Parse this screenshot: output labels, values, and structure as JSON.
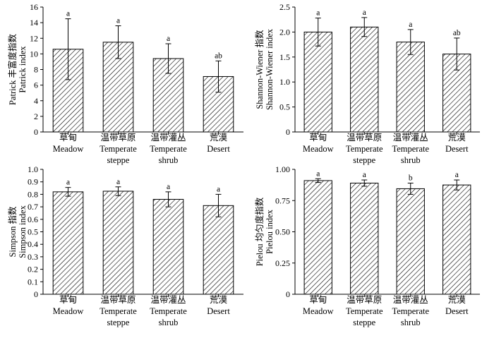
{
  "figure": {
    "panels": 4
  },
  "chart_data": [
    {
      "type": "bar",
      "ylabel": "Patrick 丰富度指数",
      "ylabel_en": "Patrick index",
      "ylim": [
        0,
        16
      ],
      "yticks": [
        "0",
        "2",
        "4",
        "6",
        "8",
        "10",
        "12",
        "14",
        "16"
      ],
      "grid": false,
      "categories": [
        {
          "zh": "草甸",
          "en1": "Meadow",
          "en2": ""
        },
        {
          "zh": "温带草原",
          "en1": "Temperate",
          "en2": "steppe"
        },
        {
          "zh": "温带灌丛",
          "en1": "Temperate",
          "en2": "shrub"
        },
        {
          "zh": "荒漠",
          "en1": "Desert",
          "en2": ""
        }
      ],
      "values": [
        10.6,
        11.5,
        9.4,
        7.1
      ],
      "errors": [
        3.9,
        2.1,
        1.9,
        2.0
      ],
      "significance": [
        "a",
        "a",
        "a",
        "ab"
      ]
    },
    {
      "type": "bar",
      "ylabel": "Shannon-Wiener 指数",
      "ylabel_en": "Shannon-Wiener index",
      "ylim": [
        0,
        2.5
      ],
      "yticks": [
        "0",
        "0.5",
        "1.0",
        "1.5",
        "2.0",
        "2.5"
      ],
      "grid": false,
      "categories": [
        {
          "zh": "草甸",
          "en1": "Meadow",
          "en2": ""
        },
        {
          "zh": "温带草原",
          "en1": "Temperate",
          "en2": "steppe"
        },
        {
          "zh": "温带灌丛",
          "en1": "Temperate",
          "en2": "shrub"
        },
        {
          "zh": "荒漠",
          "en1": "Desert",
          "en2": ""
        }
      ],
      "values": [
        2.0,
        2.1,
        1.8,
        1.56
      ],
      "errors": [
        0.28,
        0.19,
        0.25,
        0.32
      ],
      "significance": [
        "a",
        "a",
        "a",
        "ab"
      ]
    },
    {
      "type": "bar",
      "ylabel": "Simpson 指数",
      "ylabel_en": "Simpson index",
      "ylim": [
        0,
        1.0
      ],
      "yticks": [
        "0",
        "0.1",
        "0.2",
        "0.3",
        "0.4",
        "0.5",
        "0.6",
        "0.7",
        "0.8",
        "0.9",
        "1.0"
      ],
      "grid": false,
      "categories": [
        {
          "zh": "草甸",
          "en1": "Meadow",
          "en2": ""
        },
        {
          "zh": "温带草原",
          "en1": "Temperate",
          "en2": "steppe"
        },
        {
          "zh": "温带灌丛",
          "en1": "Temperate",
          "en2": "shrub"
        },
        {
          "zh": "荒漠",
          "en1": "Desert",
          "en2": ""
        }
      ],
      "values": [
        0.82,
        0.825,
        0.76,
        0.71
      ],
      "errors": [
        0.035,
        0.035,
        0.06,
        0.09
      ],
      "significance": [
        "a",
        "a",
        "a",
        "a"
      ]
    },
    {
      "type": "bar",
      "ylabel": "Pielou 均匀度指数",
      "ylabel_en": "Pielou index",
      "ylim": [
        0,
        1.0
      ],
      "yticks": [
        "0",
        "0.25",
        "0.50",
        "0.75",
        "1.00"
      ],
      "grid": false,
      "categories": [
        {
          "zh": "草甸",
          "en1": "Meadow",
          "en2": ""
        },
        {
          "zh": "温带草原",
          "en1": "Temperate",
          "en2": "steppe"
        },
        {
          "zh": "温带灌丛",
          "en1": "Temperate",
          "en2": "shrub"
        },
        {
          "zh": "荒漠",
          "en1": "Desert",
          "en2": ""
        }
      ],
      "values": [
        0.91,
        0.89,
        0.845,
        0.875
      ],
      "errors": [
        0.015,
        0.025,
        0.045,
        0.04
      ],
      "significance": [
        "a",
        "a",
        "b",
        "a"
      ]
    }
  ]
}
